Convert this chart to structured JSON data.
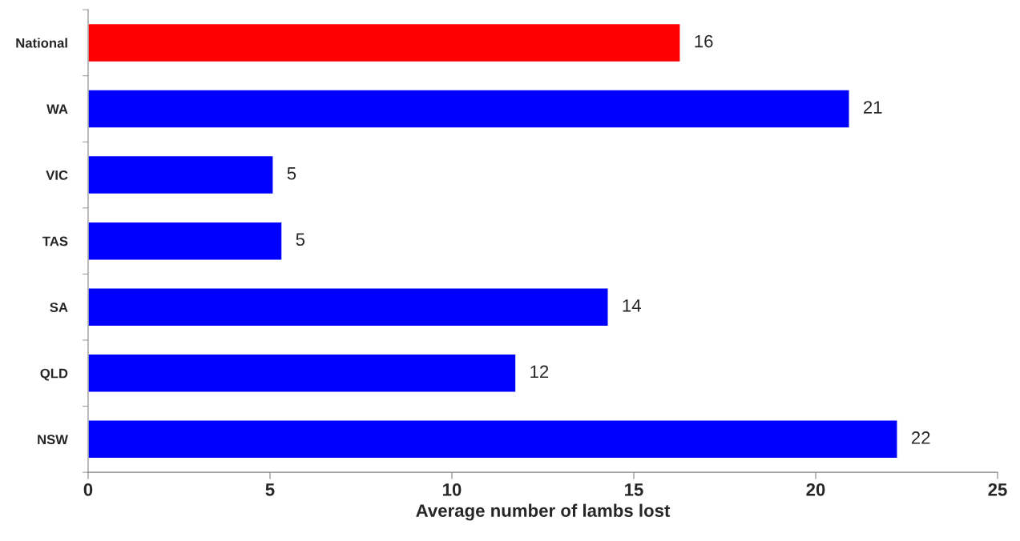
{
  "chart_data": {
    "type": "bar",
    "orientation": "horizontal",
    "xlabel": "Average number of lambs lost",
    "categories": [
      "National",
      "WA",
      "VIC",
      "TAS",
      "SA",
      "QLD",
      "NSW"
    ],
    "values": [
      16.28,
      20.93,
      5.09,
      5.33,
      14.3,
      11.76,
      22.25
    ],
    "colors": [
      "#ff0000",
      "#0000ff",
      "#0000ff",
      "#0000ff",
      "#0000ff",
      "#0000ff",
      "#0000ff"
    ],
    "value_labels": [
      "16",
      "21",
      "5",
      "5",
      "14",
      "12",
      "22"
    ],
    "xlim": [
      0,
      25
    ],
    "xticks": [
      0,
      5,
      10,
      15,
      20,
      25
    ],
    "grid": false,
    "legend": false
  }
}
